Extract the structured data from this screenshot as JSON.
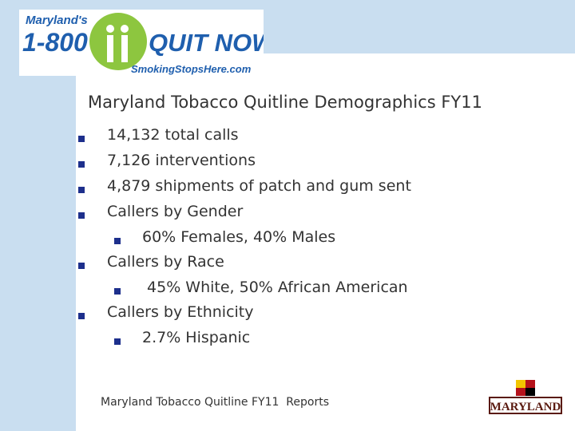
{
  "logo": {
    "top": "Maryland's",
    "number": "1-800",
    "name": "QUIT NOW",
    "url": "SmokingStopsHere.com"
  },
  "title": "Maryland Tobacco Quitline Demographics FY11",
  "bullets": [
    {
      "text": "14,132 total calls"
    },
    {
      "text": "7,126 interventions"
    },
    {
      "text": "4,879 shipments of patch and gum sent"
    },
    {
      "text": "Callers by Gender",
      "sub": [
        "60% Females, 40% Males"
      ]
    },
    {
      "text": "Callers by Race",
      "sub": [
        " 45% White, 50% African American"
      ]
    },
    {
      "text": "Callers by Ethnicity",
      "sub": [
        "2.7% Hispanic"
      ]
    }
  ],
  "footer": "Maryland Tobacco Quitline FY11  Reports",
  "seal": "MARYLAND"
}
